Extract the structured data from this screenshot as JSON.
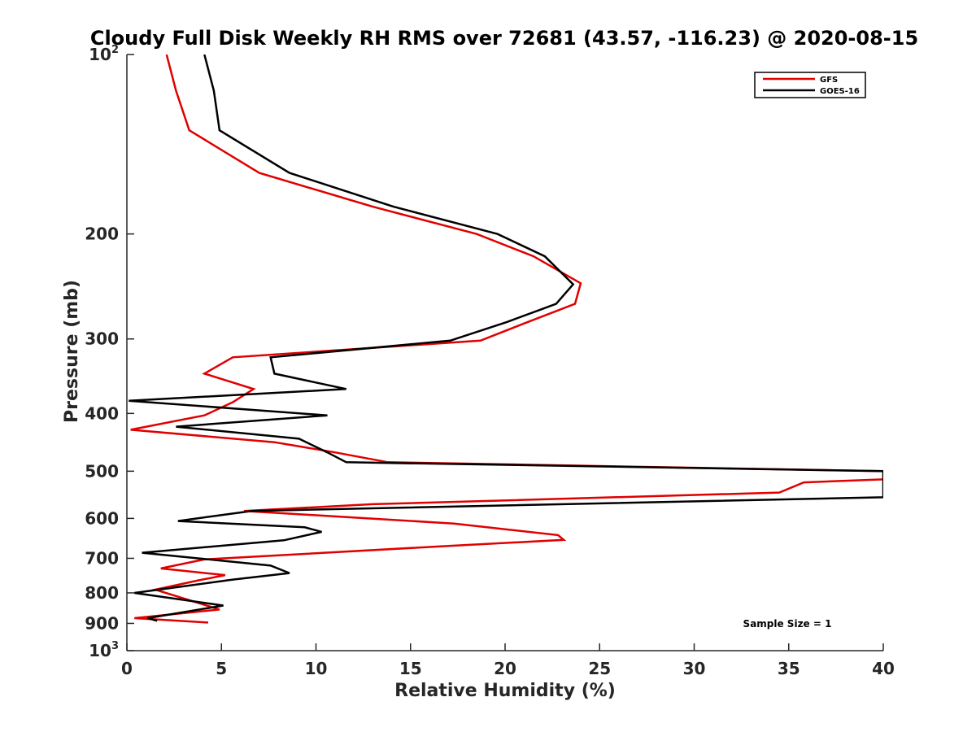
{
  "chart_data": {
    "type": "line",
    "title": "Cloudy Full Disk Weekly RH RMS over 72681 (43.57, -116.23) @ 2020-08-15",
    "xlabel": "Relative Humidity (%)",
    "ylabel": "Pressure (mb)",
    "xlim": [
      0,
      40
    ],
    "ylim": [
      100,
      1000
    ],
    "y_scale": "log",
    "y_reversed": true,
    "x_ticks": [
      0,
      5,
      10,
      15,
      20,
      25,
      30,
      35,
      40
    ],
    "y_ticks": [
      {
        "value": 100,
        "base": "10",
        "exp": "2"
      },
      {
        "value": 200,
        "label": "200"
      },
      {
        "value": 300,
        "label": "300"
      },
      {
        "value": 400,
        "label": "400"
      },
      {
        "value": 500,
        "label": "500"
      },
      {
        "value": 600,
        "label": "600"
      },
      {
        "value": 700,
        "label": "700"
      },
      {
        "value": 800,
        "label": "800"
      },
      {
        "value": 900,
        "label": "900"
      },
      {
        "value": 1000,
        "base": "10",
        "exp": "3"
      }
    ],
    "legend_position": "top-right",
    "annotation": "Sample Size = 1",
    "series": [
      {
        "name": "GFS",
        "color": "#e00000",
        "points": [
          [
            2.1,
            100
          ],
          [
            2.6,
            115
          ],
          [
            3.3,
            134
          ],
          [
            7.0,
            158
          ],
          [
            13.0,
            180
          ],
          [
            18.5,
            200
          ],
          [
            21.5,
            218
          ],
          [
            24.0,
            242
          ],
          [
            23.7,
            262
          ],
          [
            21.2,
            281
          ],
          [
            18.7,
            302
          ],
          [
            5.6,
            322
          ],
          [
            4.1,
            343
          ],
          [
            6.7,
            364
          ],
          [
            5.6,
            383
          ],
          [
            4.1,
            403
          ],
          [
            0.2,
            426
          ],
          [
            7.8,
            447
          ],
          [
            11.0,
            465
          ],
          [
            13.8,
            483
          ],
          [
            40,
            500
          ],
          [
            40,
            516
          ],
          [
            35.8,
            522
          ],
          [
            34.5,
            543
          ],
          [
            13.0,
            568
          ],
          [
            6.2,
            583
          ],
          [
            17.3,
            612
          ],
          [
            22.8,
            640
          ],
          [
            23.1,
            652
          ],
          [
            17.1,
            667
          ],
          [
            4.1,
            703
          ],
          [
            1.8,
            728
          ],
          [
            5.2,
            747
          ],
          [
            3.8,
            762
          ],
          [
            1.5,
            790
          ],
          [
            4.9,
            853
          ],
          [
            0.4,
            882
          ],
          [
            4.3,
            897
          ]
        ]
      },
      {
        "name": "GOES-16",
        "color": "#000000",
        "points": [
          [
            4.1,
            100
          ],
          [
            4.6,
            115
          ],
          [
            4.9,
            134
          ],
          [
            8.6,
            158
          ],
          [
            14.1,
            180
          ],
          [
            19.6,
            200
          ],
          [
            22.1,
            218
          ],
          [
            23.6,
            243
          ],
          [
            22.7,
            262
          ],
          [
            20.1,
            281
          ],
          [
            17.1,
            302
          ],
          [
            7.6,
            322
          ],
          [
            7.8,
            343
          ],
          [
            11.6,
            364
          ],
          [
            0.1,
            381
          ],
          [
            10.6,
            403
          ],
          [
            2.6,
            421
          ],
          [
            9.1,
            441
          ],
          [
            10.6,
            465
          ],
          [
            11.6,
            483
          ],
          [
            40,
            500
          ],
          [
            40,
            553
          ],
          [
            6.6,
            583
          ],
          [
            2.7,
            606
          ],
          [
            9.4,
            621
          ],
          [
            10.3,
            632
          ],
          [
            8.3,
            653
          ],
          [
            0.8,
            685
          ],
          [
            7.6,
            720
          ],
          [
            8.6,
            741
          ],
          [
            5.6,
            760
          ],
          [
            0.4,
            800
          ],
          [
            5.1,
            840
          ],
          [
            1.1,
            882
          ],
          [
            1.6,
            891
          ]
        ]
      }
    ]
  }
}
